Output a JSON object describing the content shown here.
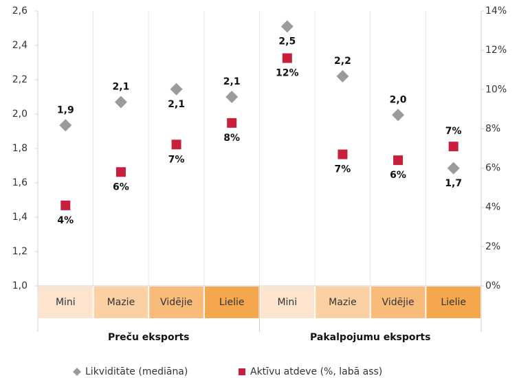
{
  "chart_data": {
    "type": "scatter",
    "categories": [
      "Mini",
      "Mazie",
      "Vidējie",
      "Lielie",
      "Mini",
      "Mazie",
      "Vidējie",
      "Lielie"
    ],
    "groups": [
      "Preču eksports",
      "Pakalpojumu eksports"
    ],
    "category_colors": [
      "#fde4ce",
      "#fbd0a3",
      "#f8bb7c",
      "#f4a74c",
      "#fde4ce",
      "#fbd0a3",
      "#f8bb7c",
      "#f4a74c"
    ],
    "ylim": [
      1.0,
      2.6
    ],
    "yticks": [
      {
        "value": 1.0,
        "label": "1,0"
      },
      {
        "value": 1.2,
        "label": "1,2"
      },
      {
        "value": 1.4,
        "label": "1,4"
      },
      {
        "value": 1.6,
        "label": "1,6"
      },
      {
        "value": 1.8,
        "label": "1,8"
      },
      {
        "value": 2.0,
        "label": "2,0"
      },
      {
        "value": 2.2,
        "label": "2,2"
      },
      {
        "value": 2.4,
        "label": "2,4"
      },
      {
        "value": 2.6,
        "label": "2,6"
      }
    ],
    "y2lim": [
      0,
      14
    ],
    "y2ticks": [
      {
        "value": 0,
        "label": "0%"
      },
      {
        "value": 2,
        "label": "2%"
      },
      {
        "value": 4,
        "label": "4%"
      },
      {
        "value": 6,
        "label": "6%"
      },
      {
        "value": 8,
        "label": "8%"
      },
      {
        "value": 10,
        "label": "10%"
      },
      {
        "value": 12,
        "label": "12%"
      },
      {
        "value": 14,
        "label": "14%"
      }
    ],
    "series": [
      {
        "name": "Likviditāte (mediāna)",
        "color": "#9b9b9b",
        "marker": "diamond",
        "values": [
          1.935,
          2.07,
          2.145,
          2.1,
          2.51,
          2.22,
          1.995,
          1.685
        ],
        "value_labels": [
          "1,9",
          "2,1",
          "2,1",
          "2,1",
          "2,5",
          "2,2",
          "2,0",
          "1,7"
        ]
      },
      {
        "name": "Aktīvu atdeve (%, labā ass)",
        "color": "#c8203c",
        "marker": "square",
        "axis": "y2",
        "values": [
          4.1,
          5.8,
          7.2,
          8.3,
          11.6,
          6.7,
          6.4,
          7.1
        ],
        "value_labels": [
          "4%",
          "6%",
          "7%",
          "8%",
          "12%",
          "7%",
          "6%",
          "7%"
        ]
      }
    ]
  }
}
